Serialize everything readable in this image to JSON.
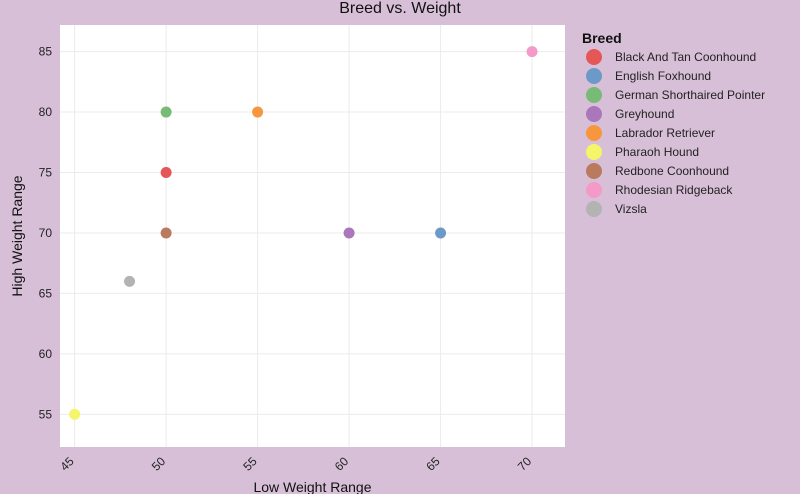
{
  "chart_data": {
    "type": "scatter",
    "title": "Breed vs. Weight",
    "xlabel": "Low Weight Range",
    "ylabel": "High Weight Range",
    "xlim": [
      44.2,
      71.8
    ],
    "ylim": [
      52.3,
      87.2
    ],
    "xticks": [
      45,
      50,
      55,
      60,
      65,
      70
    ],
    "yticks": [
      55,
      60,
      65,
      70,
      75,
      80,
      85
    ],
    "grid": true,
    "legend": {
      "title": "Breed",
      "placement": "right"
    },
    "series": [
      {
        "name": "Black And Tan Coonhound",
        "color": "#e45756",
        "x": [
          50
        ],
        "y": [
          75
        ]
      },
      {
        "name": "English Foxhound",
        "color": "#6c9ac8",
        "x": [
          65
        ],
        "y": [
          70
        ]
      },
      {
        "name": "German Shorthaired Pointer",
        "color": "#77bb77",
        "x": [
          50
        ],
        "y": [
          80
        ]
      },
      {
        "name": "Greyhound",
        "color": "#aa77bb",
        "x": [
          60
        ],
        "y": [
          70
        ]
      },
      {
        "name": "Labrador Retriever",
        "color": "#f8963e",
        "x": [
          55
        ],
        "y": [
          80
        ]
      },
      {
        "name": "Pharaoh Hound",
        "color": "#f5f56a",
        "x": [
          45
        ],
        "y": [
          55
        ]
      },
      {
        "name": "Redbone Coonhound",
        "color": "#b97a5e",
        "x": [
          50
        ],
        "y": [
          70
        ]
      },
      {
        "name": "Rhodesian Ridgeback",
        "color": "#f49ac8",
        "x": [
          70
        ],
        "y": [
          85
        ]
      },
      {
        "name": "Vizsla",
        "color": "#b3b3b3",
        "x": [
          48
        ],
        "y": [
          66
        ]
      }
    ]
  }
}
